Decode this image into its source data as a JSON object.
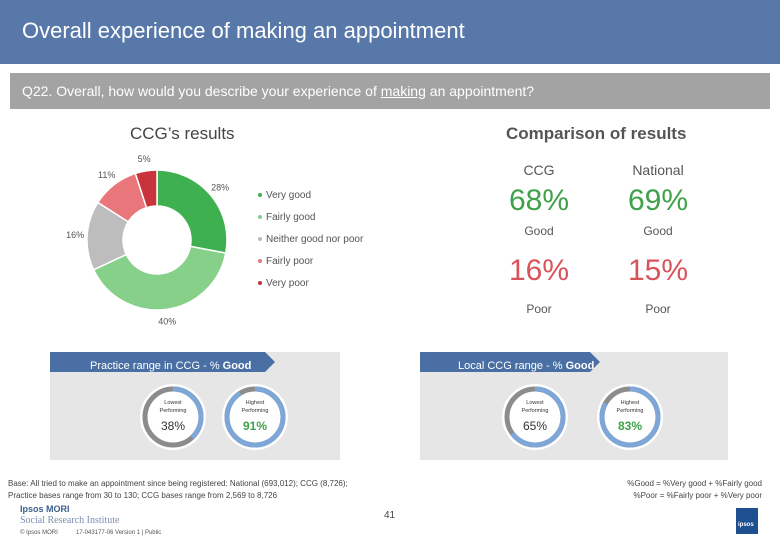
{
  "header": {
    "title": "Overall experience of making an appointment",
    "question_prefix": "Q22. Overall, how would you describe your experience of ",
    "question_underlined": "making",
    "question_suffix": " an appointment?"
  },
  "sections": {
    "ccg_results": "CCG’s results",
    "comparison": "Comparison of results"
  },
  "chart_data": {
    "type": "pie",
    "variant": "donut",
    "title": "CCG’s results",
    "categories": [
      "Very good",
      "Fairly good",
      "Neither good nor poor",
      "Fairly poor",
      "Very poor"
    ],
    "values": [
      28,
      40,
      16,
      11,
      5
    ],
    "value_labels": [
      "28%",
      "40%",
      "16%",
      "11%",
      "5%"
    ],
    "colors": [
      "#3fb04f",
      "#86d08a",
      "#bdbdbd",
      "#e8767b",
      "#c9343c"
    ],
    "legend_placement": "right"
  },
  "comparison": {
    "columns": [
      "CCG",
      "National"
    ],
    "good": {
      "values": [
        "68%",
        "69%"
      ],
      "label": "Good"
    },
    "poor": {
      "values": [
        "16%",
        "15%"
      ],
      "label": "Poor"
    }
  },
  "practice_range": {
    "title_prefix": "Practice range in CCG - % ",
    "title_bold": "Good",
    "lowest_label": "Lowest Performing",
    "highest_label": "Highest Performing",
    "lowest_value": "38%",
    "highest_value": "91%",
    "lowest_pct": 38,
    "highest_pct": 91
  },
  "local_range": {
    "title_prefix": "Local CCG range - % ",
    "title_bold": "Good",
    "lowest_label": "Lowest Performing",
    "highest_label": "Highest Performing",
    "lowest_value": "65%",
    "highest_value": "83%",
    "lowest_pct": 65,
    "highest_pct": 83
  },
  "footer": {
    "base_line1": "Base: All tried to make an appointment since being registered: National (693,012); CCG (8,726);",
    "base_line2": "Practice bases range from 30 to 130; CCG bases range from 2,569 to 8,726",
    "def_good": "%Good = %Very good + %Fairly good",
    "def_poor": "%Poor = %Fairly poor + %Very poor",
    "page_number": "41",
    "logo_line1": "Ipsos MORI",
    "logo_line2": "Social Research Institute",
    "copyright": "© Ipsos MORI",
    "version": "17-043177-06 Version 1 | Public",
    "ipsos_box": "ipsos"
  },
  "colors": {
    "title_bar": "#5778a8",
    "question_bar": "#a3a3a3",
    "good": "#3fa14a",
    "poor": "#d9545a",
    "range_ring": "#7ea6d6",
    "range_ring_bg": "#8c8c8c"
  }
}
